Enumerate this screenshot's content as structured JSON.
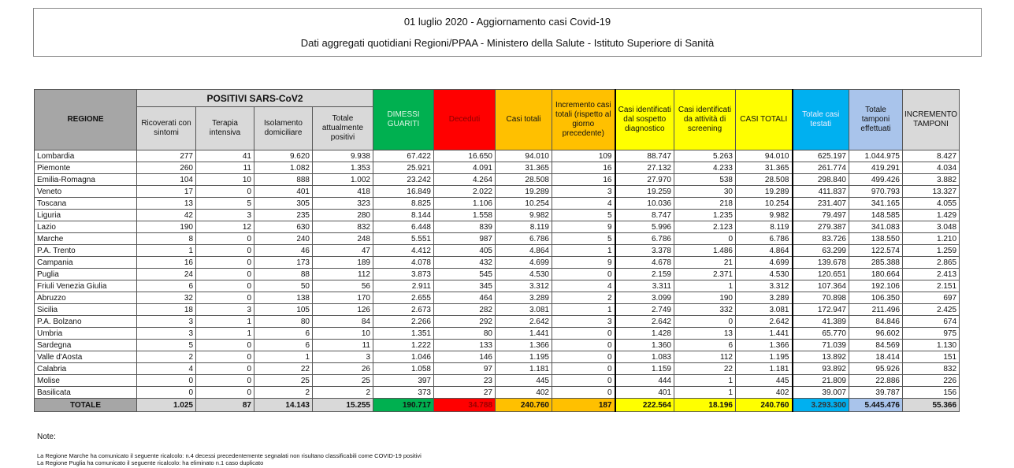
{
  "title": "01 luglio 2020 - Aggiornamento casi Covid-19",
  "subtitle": "Dati aggregati quotidiani Regioni/PPAA - Ministero della Salute - Istituto Superiore di Sanità",
  "headers": {
    "regione": "REGIONE",
    "positivi_group": "POSITIVI SARS-CoV2",
    "ricoverati": "Ricoverati con sintomi",
    "terapia": "Terapia intensiva",
    "isolamento": "Isolamento domiciliare",
    "totale_positivi": "Totale attualmente positivi",
    "dimessi": "DIMESSI GUARITI",
    "deceduti": "Deceduti",
    "casi_totali": "Casi totali",
    "incremento_casi": "Incremento casi totali (rispetto al giorno precedente)",
    "sospetto": "Casi identificati dal sospetto diagnostico",
    "screening": "Casi identificati da attività di screening",
    "casi_totali_2": "CASI TOTALI",
    "testati": "Totale casi testati",
    "tamponi": "Totale tamponi effettuati",
    "incremento_tamponi": "INCREMENTO TAMPONI"
  },
  "rows": [
    [
      "Lombardia",
      "277",
      "41",
      "9.620",
      "9.938",
      "67.422",
      "16.650",
      "94.010",
      "109",
      "88.747",
      "5.263",
      "94.010",
      "625.197",
      "1.044.975",
      "8.427"
    ],
    [
      "Piemonte",
      "260",
      "11",
      "1.082",
      "1.353",
      "25.921",
      "4.091",
      "31.365",
      "16",
      "27.132",
      "4.233",
      "31.365",
      "261.774",
      "419.291",
      "4.034"
    ],
    [
      "Emilia-Romagna",
      "104",
      "10",
      "888",
      "1.002",
      "23.242",
      "4.264",
      "28.508",
      "16",
      "27.970",
      "538",
      "28.508",
      "298.840",
      "499.426",
      "3.882"
    ],
    [
      "Veneto",
      "17",
      "0",
      "401",
      "418",
      "16.849",
      "2.022",
      "19.289",
      "3",
      "19.259",
      "30",
      "19.289",
      "411.837",
      "970.793",
      "13.327"
    ],
    [
      "Toscana",
      "13",
      "5",
      "305",
      "323",
      "8.825",
      "1.106",
      "10.254",
      "4",
      "10.036",
      "218",
      "10.254",
      "231.407",
      "341.165",
      "4.055"
    ],
    [
      "Liguria",
      "42",
      "3",
      "235",
      "280",
      "8.144",
      "1.558",
      "9.982",
      "5",
      "8.747",
      "1.235",
      "9.982",
      "79.497",
      "148.585",
      "1.429"
    ],
    [
      "Lazio",
      "190",
      "12",
      "630",
      "832",
      "6.448",
      "839",
      "8.119",
      "9",
      "5.996",
      "2.123",
      "8.119",
      "279.387",
      "341.083",
      "3.048"
    ],
    [
      "Marche",
      "8",
      "0",
      "240",
      "248",
      "5.551",
      "987",
      "6.786",
      "5",
      "6.786",
      "0",
      "6.786",
      "83.726",
      "138.550",
      "1.210"
    ],
    [
      "P.A. Trento",
      "1",
      "0",
      "46",
      "47",
      "4.412",
      "405",
      "4.864",
      "1",
      "3.378",
      "1.486",
      "4.864",
      "63.299",
      "122.574",
      "1.259"
    ],
    [
      "Campania",
      "16",
      "0",
      "173",
      "189",
      "4.078",
      "432",
      "4.699",
      "9",
      "4.678",
      "21",
      "4.699",
      "139.678",
      "285.388",
      "2.865"
    ],
    [
      "Puglia",
      "24",
      "0",
      "88",
      "112",
      "3.873",
      "545",
      "4.530",
      "0",
      "2.159",
      "2.371",
      "4.530",
      "120.651",
      "180.664",
      "2.413"
    ],
    [
      "Friuli Venezia Giulia",
      "6",
      "0",
      "50",
      "56",
      "2.911",
      "345",
      "3.312",
      "4",
      "3.311",
      "1",
      "3.312",
      "107.364",
      "192.106",
      "2.151"
    ],
    [
      "Abruzzo",
      "32",
      "0",
      "138",
      "170",
      "2.655",
      "464",
      "3.289",
      "2",
      "3.099",
      "190",
      "3.289",
      "70.898",
      "106.350",
      "697"
    ],
    [
      "Sicilia",
      "18",
      "3",
      "105",
      "126",
      "2.673",
      "282",
      "3.081",
      "1",
      "2.749",
      "332",
      "3.081",
      "172.947",
      "211.496",
      "2.425"
    ],
    [
      "P.A. Bolzano",
      "3",
      "1",
      "80",
      "84",
      "2.266",
      "292",
      "2.642",
      "3",
      "2.642",
      "0",
      "2.642",
      "41.389",
      "84.846",
      "674"
    ],
    [
      "Umbria",
      "3",
      "1",
      "6",
      "10",
      "1.351",
      "80",
      "1.441",
      "0",
      "1.428",
      "13",
      "1.441",
      "65.770",
      "96.602",
      "975"
    ],
    [
      "Sardegna",
      "5",
      "0",
      "6",
      "11",
      "1.222",
      "133",
      "1.366",
      "0",
      "1.360",
      "6",
      "1.366",
      "71.039",
      "84.569",
      "1.130"
    ],
    [
      "Valle d'Aosta",
      "2",
      "0",
      "1",
      "3",
      "1.046",
      "146",
      "1.195",
      "0",
      "1.083",
      "112",
      "1.195",
      "13.892",
      "18.414",
      "151"
    ],
    [
      "Calabria",
      "4",
      "0",
      "22",
      "26",
      "1.058",
      "97",
      "1.181",
      "0",
      "1.159",
      "22",
      "1.181",
      "93.892",
      "95.926",
      "832"
    ],
    [
      "Molise",
      "0",
      "0",
      "25",
      "25",
      "397",
      "23",
      "445",
      "0",
      "444",
      "1",
      "445",
      "21.809",
      "22.886",
      "226"
    ],
    [
      "Basilicata",
      "0",
      "0",
      "2",
      "2",
      "373",
      "27",
      "402",
      "0",
      "401",
      "1",
      "402",
      "39.007",
      "39.787",
      "156"
    ]
  ],
  "total": [
    "TOTALE",
    "1.025",
    "87",
    "14.143",
    "15.255",
    "190.717",
    "34.788",
    "240.760",
    "187",
    "222.564",
    "18.196",
    "240.760",
    "3.293.300",
    "5.445.476",
    "55.366"
  ],
  "notes": {
    "label": "Note:",
    "line1": "La Regione Marche  ha comunicato il seguente ricalcolo:  n.4 decessi  precedentemente segnalati non risultano classificabili come COVID-19  positivi",
    "line2": "La Regione Puglia ha comunicato il seguente ricalcolo: ha eliminato n.1 caso duplicato"
  }
}
